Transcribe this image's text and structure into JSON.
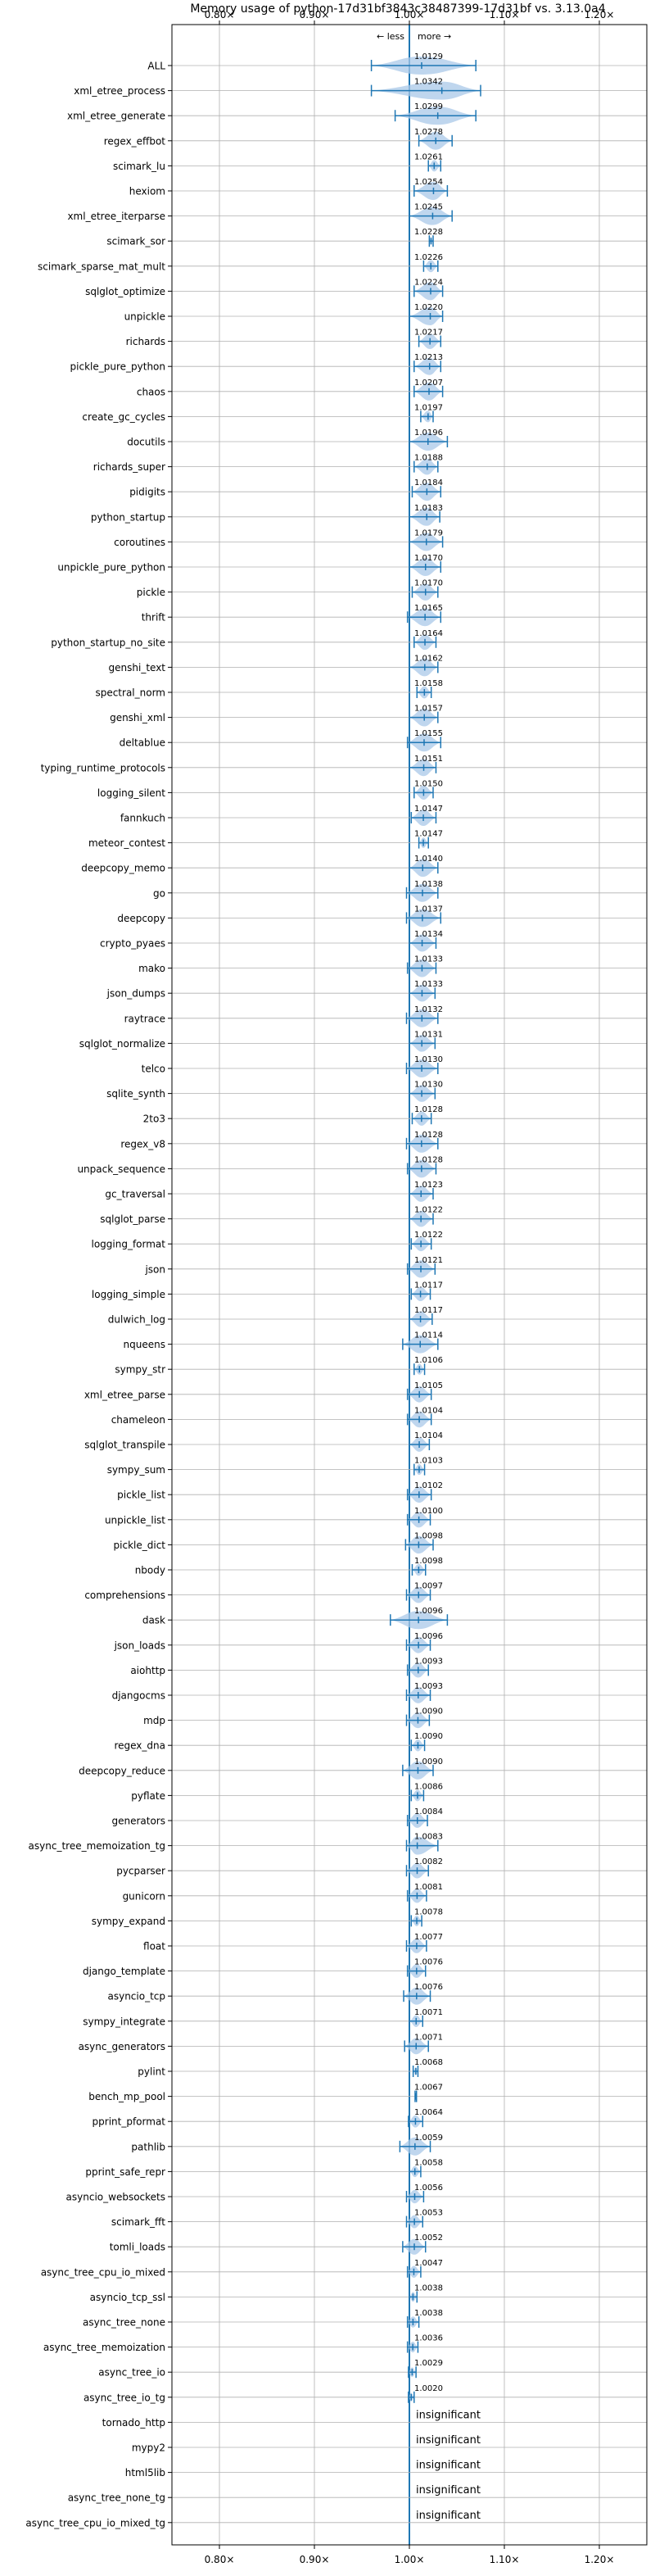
{
  "chart_data": {
    "type": "violin",
    "title": "Memory usage of python-17d31bf3843c38487399-17d31bf vs. 3.13.0a4",
    "xlim": [
      0.75,
      1.25
    ],
    "x_ticks": [
      {
        "value": 0.8,
        "label": "0.80×"
      },
      {
        "value": 0.9,
        "label": "0.90×"
      },
      {
        "value": 1.0,
        "label": "1.00×"
      },
      {
        "value": 1.1,
        "label": "1.10×"
      },
      {
        "value": 1.2,
        "label": "1.20×"
      }
    ],
    "annotation_less": "← less",
    "annotation_more": "more →",
    "insignificant_label": "insignificant",
    "colors": {
      "violin": "#a9c8e8",
      "line": "#1f77b4",
      "grid": "#b0b0b0",
      "text": "#000000"
    },
    "benchmarks": [
      {
        "name": "ALL",
        "value": "1.0129",
        "ratio": 1.0129,
        "min": 0.96,
        "max": 1.07
      },
      {
        "name": "xml_etree_process",
        "value": "1.0342",
        "ratio": 1.0342,
        "min": 0.96,
        "max": 1.075
      },
      {
        "name": "xml_etree_generate",
        "value": "1.0299",
        "ratio": 1.0299,
        "min": 0.985,
        "max": 1.07
      },
      {
        "name": "regex_effbot",
        "value": "1.0278",
        "ratio": 1.0278,
        "min": 1.01,
        "max": 1.045
      },
      {
        "name": "scimark_lu",
        "value": "1.0261",
        "ratio": 1.0261,
        "min": 1.02,
        "max": 1.033
      },
      {
        "name": "hexiom",
        "value": "1.0254",
        "ratio": 1.0254,
        "min": 1.005,
        "max": 1.04
      },
      {
        "name": "xml_etree_iterparse",
        "value": "1.0245",
        "ratio": 1.0245,
        "min": 1.0,
        "max": 1.045
      },
      {
        "name": "scimark_sor",
        "value": "1.0228",
        "ratio": 1.0228,
        "min": 1.021,
        "max": 1.025
      },
      {
        "name": "scimark_sparse_mat_mult",
        "value": "1.0226",
        "ratio": 1.0226,
        "min": 1.015,
        "max": 1.03
      },
      {
        "name": "sqlglot_optimize",
        "value": "1.0224",
        "ratio": 1.0224,
        "min": 1.005,
        "max": 1.035
      },
      {
        "name": "unpickle",
        "value": "1.0220",
        "ratio": 1.022,
        "min": 1.0,
        "max": 1.035
      },
      {
        "name": "richards",
        "value": "1.0217",
        "ratio": 1.0217,
        "min": 1.01,
        "max": 1.033
      },
      {
        "name": "pickle_pure_python",
        "value": "1.0213",
        "ratio": 1.0213,
        "min": 1.005,
        "max": 1.033
      },
      {
        "name": "chaos",
        "value": "1.0207",
        "ratio": 1.0207,
        "min": 1.005,
        "max": 1.035
      },
      {
        "name": "create_gc_cycles",
        "value": "1.0197",
        "ratio": 1.0197,
        "min": 1.012,
        "max": 1.025
      },
      {
        "name": "docutils",
        "value": "1.0196",
        "ratio": 1.0196,
        "min": 1.0,
        "max": 1.04
      },
      {
        "name": "richards_super",
        "value": "1.0188",
        "ratio": 1.0188,
        "min": 1.005,
        "max": 1.03
      },
      {
        "name": "pidigits",
        "value": "1.0184",
        "ratio": 1.0184,
        "min": 1.003,
        "max": 1.033
      },
      {
        "name": "python_startup",
        "value": "1.0183",
        "ratio": 1.0183,
        "min": 1.0,
        "max": 1.032
      },
      {
        "name": "coroutines",
        "value": "1.0179",
        "ratio": 1.0179,
        "min": 1.0,
        "max": 1.035
      },
      {
        "name": "unpickle_pure_python",
        "value": "1.0170",
        "ratio": 1.017,
        "min": 1.0,
        "max": 1.033
      },
      {
        "name": "pickle",
        "value": "1.0170",
        "ratio": 1.017,
        "min": 1.003,
        "max": 1.03
      },
      {
        "name": "thrift",
        "value": "1.0165",
        "ratio": 1.0165,
        "min": 0.998,
        "max": 1.033
      },
      {
        "name": "python_startup_no_site",
        "value": "1.0164",
        "ratio": 1.0164,
        "min": 1.005,
        "max": 1.028
      },
      {
        "name": "genshi_text",
        "value": "1.0162",
        "ratio": 1.0162,
        "min": 1.0,
        "max": 1.03
      },
      {
        "name": "spectral_norm",
        "value": "1.0158",
        "ratio": 1.0158,
        "min": 1.008,
        "max": 1.023
      },
      {
        "name": "genshi_xml",
        "value": "1.0157",
        "ratio": 1.0157,
        "min": 1.0,
        "max": 1.03
      },
      {
        "name": "deltablue",
        "value": "1.0155",
        "ratio": 1.0155,
        "min": 0.998,
        "max": 1.033
      },
      {
        "name": "typing_runtime_protocols",
        "value": "1.0151",
        "ratio": 1.0151,
        "min": 1.0,
        "max": 1.028
      },
      {
        "name": "logging_silent",
        "value": "1.0150",
        "ratio": 1.015,
        "min": 1.005,
        "max": 1.025
      },
      {
        "name": "fannkuch",
        "value": "1.0147",
        "ratio": 1.0147,
        "min": 1.002,
        "max": 1.028
      },
      {
        "name": "meteor_contest",
        "value": "1.0147",
        "ratio": 1.0147,
        "min": 1.01,
        "max": 1.02
      },
      {
        "name": "deepcopy_memo",
        "value": "1.0140",
        "ratio": 1.014,
        "min": 1.0,
        "max": 1.03
      },
      {
        "name": "go",
        "value": "1.0138",
        "ratio": 1.0138,
        "min": 0.997,
        "max": 1.03
      },
      {
        "name": "deepcopy",
        "value": "1.0137",
        "ratio": 1.0137,
        "min": 0.997,
        "max": 1.033
      },
      {
        "name": "crypto_pyaes",
        "value": "1.0134",
        "ratio": 1.0134,
        "min": 1.0,
        "max": 1.028
      },
      {
        "name": "mako",
        "value": "1.0133",
        "ratio": 1.0133,
        "min": 0.998,
        "max": 1.028
      },
      {
        "name": "json_dumps",
        "value": "1.0133",
        "ratio": 1.0133,
        "min": 1.0,
        "max": 1.027
      },
      {
        "name": "raytrace",
        "value": "1.0132",
        "ratio": 1.0132,
        "min": 0.997,
        "max": 1.03
      },
      {
        "name": "sqlglot_normalize",
        "value": "1.0131",
        "ratio": 1.0131,
        "min": 1.0,
        "max": 1.027
      },
      {
        "name": "telco",
        "value": "1.0130",
        "ratio": 1.013,
        "min": 0.997,
        "max": 1.03
      },
      {
        "name": "sqlite_synth",
        "value": "1.0130",
        "ratio": 1.013,
        "min": 1.0,
        "max": 1.027
      },
      {
        "name": "2to3",
        "value": "1.0128",
        "ratio": 1.0128,
        "min": 1.003,
        "max": 1.023
      },
      {
        "name": "regex_v8",
        "value": "1.0128",
        "ratio": 1.0128,
        "min": 0.997,
        "max": 1.03
      },
      {
        "name": "unpack_sequence",
        "value": "1.0128",
        "ratio": 1.0128,
        "min": 0.998,
        "max": 1.028
      },
      {
        "name": "gc_traversal",
        "value": "1.0123",
        "ratio": 1.0123,
        "min": 1.0,
        "max": 1.025
      },
      {
        "name": "sqlglot_parse",
        "value": "1.0122",
        "ratio": 1.0122,
        "min": 1.0,
        "max": 1.025
      },
      {
        "name": "logging_format",
        "value": "1.0122",
        "ratio": 1.0122,
        "min": 1.002,
        "max": 1.023
      },
      {
        "name": "json",
        "value": "1.0121",
        "ratio": 1.0121,
        "min": 0.998,
        "max": 1.027
      },
      {
        "name": "logging_simple",
        "value": "1.0117",
        "ratio": 1.0117,
        "min": 1.002,
        "max": 1.022
      },
      {
        "name": "dulwich_log",
        "value": "1.0117",
        "ratio": 1.0117,
        "min": 1.0,
        "max": 1.024
      },
      {
        "name": "nqueens",
        "value": "1.0114",
        "ratio": 1.0114,
        "min": 0.993,
        "max": 1.03
      },
      {
        "name": "sympy_str",
        "value": "1.0106",
        "ratio": 1.0106,
        "min": 1.005,
        "max": 1.016
      },
      {
        "name": "xml_etree_parse",
        "value": "1.0105",
        "ratio": 1.0105,
        "min": 0.998,
        "max": 1.023
      },
      {
        "name": "chameleon",
        "value": "1.0104",
        "ratio": 1.0104,
        "min": 0.998,
        "max": 1.023
      },
      {
        "name": "sqlglot_transpile",
        "value": "1.0104",
        "ratio": 1.0104,
        "min": 1.0,
        "max": 1.021
      },
      {
        "name": "sympy_sum",
        "value": "1.0103",
        "ratio": 1.0103,
        "min": 1.005,
        "max": 1.016
      },
      {
        "name": "pickle_list",
        "value": "1.0102",
        "ratio": 1.0102,
        "min": 0.998,
        "max": 1.023
      },
      {
        "name": "unpickle_list",
        "value": "1.0100",
        "ratio": 1.01,
        "min": 0.998,
        "max": 1.022
      },
      {
        "name": "pickle_dict",
        "value": "1.0098",
        "ratio": 1.0098,
        "min": 0.996,
        "max": 1.025
      },
      {
        "name": "nbody",
        "value": "1.0098",
        "ratio": 1.0098,
        "min": 1.003,
        "max": 1.017
      },
      {
        "name": "comprehensions",
        "value": "1.0097",
        "ratio": 1.0097,
        "min": 0.997,
        "max": 1.022
      },
      {
        "name": "dask",
        "value": "1.0096",
        "ratio": 1.0096,
        "min": 0.98,
        "max": 1.04
      },
      {
        "name": "json_loads",
        "value": "1.0096",
        "ratio": 1.0096,
        "min": 0.997,
        "max": 1.022
      },
      {
        "name": "aiohttp",
        "value": "1.0093",
        "ratio": 1.0093,
        "min": 0.998,
        "max": 1.02
      },
      {
        "name": "djangocms",
        "value": "1.0093",
        "ratio": 1.0093,
        "min": 0.997,
        "max": 1.022
      },
      {
        "name": "mdp",
        "value": "1.0090",
        "ratio": 1.009,
        "min": 0.997,
        "max": 1.021
      },
      {
        "name": "regex_dna",
        "value": "1.0090",
        "ratio": 1.009,
        "min": 1.002,
        "max": 1.016
      },
      {
        "name": "deepcopy_reduce",
        "value": "1.0090",
        "ratio": 1.009,
        "min": 0.993,
        "max": 1.025
      },
      {
        "name": "pyflate",
        "value": "1.0086",
        "ratio": 1.0086,
        "min": 1.002,
        "max": 1.015
      },
      {
        "name": "generators",
        "value": "1.0084",
        "ratio": 1.0084,
        "min": 0.998,
        "max": 1.019
      },
      {
        "name": "async_tree_memoization_tg",
        "value": "1.0083",
        "ratio": 1.0083,
        "min": 0.997,
        "max": 1.03
      },
      {
        "name": "pycparser",
        "value": "1.0082",
        "ratio": 1.0082,
        "min": 0.997,
        "max": 1.02
      },
      {
        "name": "gunicorn",
        "value": "1.0081",
        "ratio": 1.0081,
        "min": 0.998,
        "max": 1.018
      },
      {
        "name": "sympy_expand",
        "value": "1.0078",
        "ratio": 1.0078,
        "min": 1.002,
        "max": 1.013
      },
      {
        "name": "float",
        "value": "1.0077",
        "ratio": 1.0077,
        "min": 0.997,
        "max": 1.018
      },
      {
        "name": "django_template",
        "value": "1.0076",
        "ratio": 1.0076,
        "min": 0.998,
        "max": 1.017
      },
      {
        "name": "asyncio_tcp",
        "value": "1.0076",
        "ratio": 1.0076,
        "min": 0.994,
        "max": 1.022
      },
      {
        "name": "sympy_integrate",
        "value": "1.0071",
        "ratio": 1.0071,
        "min": 1.0,
        "max": 1.014
      },
      {
        "name": "async_generators",
        "value": "1.0071",
        "ratio": 1.0071,
        "min": 0.995,
        "max": 1.02
      },
      {
        "name": "pylint",
        "value": "1.0068",
        "ratio": 1.0068,
        "min": 1.004,
        "max": 1.009
      },
      {
        "name": "bench_mp_pool",
        "value": "1.0067",
        "ratio": 1.0067,
        "min": 1.006,
        "max": 1.0075
      },
      {
        "name": "pprint_pformat",
        "value": "1.0064",
        "ratio": 1.0064,
        "min": 0.999,
        "max": 1.014
      },
      {
        "name": "pathlib",
        "value": "1.0059",
        "ratio": 1.0059,
        "min": 0.99,
        "max": 1.022
      },
      {
        "name": "pprint_safe_repr",
        "value": "1.0058",
        "ratio": 1.0058,
        "min": 1.0,
        "max": 1.012
      },
      {
        "name": "asyncio_websockets",
        "value": "1.0056",
        "ratio": 1.0056,
        "min": 0.997,
        "max": 1.015
      },
      {
        "name": "scimark_fft",
        "value": "1.0053",
        "ratio": 1.0053,
        "min": 0.997,
        "max": 1.014
      },
      {
        "name": "tomli_loads",
        "value": "1.0052",
        "ratio": 1.0052,
        "min": 0.993,
        "max": 1.017
      },
      {
        "name": "async_tree_cpu_io_mixed",
        "value": "1.0047",
        "ratio": 1.0047,
        "min": 0.998,
        "max": 1.012
      },
      {
        "name": "asyncio_tcp_ssl",
        "value": "1.0038",
        "ratio": 1.0038,
        "min": 1.0,
        "max": 1.008
      },
      {
        "name": "async_tree_none",
        "value": "1.0038",
        "ratio": 1.0038,
        "min": 0.998,
        "max": 1.01
      },
      {
        "name": "async_tree_memoization",
        "value": "1.0036",
        "ratio": 1.0036,
        "min": 0.998,
        "max": 1.009
      },
      {
        "name": "async_tree_io",
        "value": "1.0029",
        "ratio": 1.0029,
        "min": 0.999,
        "max": 1.007
      },
      {
        "name": "async_tree_io_tg",
        "value": "1.0020",
        "ratio": 1.002,
        "min": 0.999,
        "max": 1.005
      },
      {
        "name": "tornado_http",
        "value": "insignificant",
        "ratio": null
      },
      {
        "name": "mypy2",
        "value": "insignificant",
        "ratio": null
      },
      {
        "name": "html5lib",
        "value": "insignificant",
        "ratio": null
      },
      {
        "name": "async_tree_none_tg",
        "value": "insignificant",
        "ratio": null
      },
      {
        "name": "async_tree_cpu_io_mixed_tg",
        "value": "insignificant",
        "ratio": null
      }
    ]
  }
}
